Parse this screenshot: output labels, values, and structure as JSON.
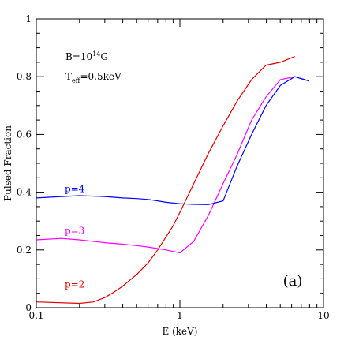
{
  "chart_data": {
    "type": "line",
    "xlabel": "E (keV)",
    "ylabel": "Pulsed Fraction",
    "xscale": "log",
    "xlim": [
      0.1,
      10
    ],
    "ylim": [
      0,
      1
    ],
    "x_ticks": [
      {
        "value": 0.1,
        "label": "0.1"
      },
      {
        "value": 1,
        "label": "1"
      },
      {
        "value": 10,
        "label": "10"
      }
    ],
    "y_ticks": [
      {
        "value": 0,
        "label": "0"
      },
      {
        "value": 0.2,
        "label": "0.2"
      },
      {
        "value": 0.4,
        "label": "0.4"
      },
      {
        "value": 0.6,
        "label": "0.6"
      },
      {
        "value": 0.8,
        "label": "0.8"
      },
      {
        "value": 1,
        "label": "1"
      }
    ],
    "annotations": {
      "field_prefix": "B=10",
      "field_exp": "14",
      "field_unit": "G",
      "temp_prefix": "T",
      "temp_sub": "eff",
      "temp_value": "=0.5keV",
      "panel_label": "(a)"
    },
    "grid": false,
    "series": [
      {
        "name": "p=2",
        "color": "#e00000",
        "label_at": {
          "x": 0.185,
          "y": 0.07
        },
        "x": [
          0.1,
          0.2,
          0.25,
          0.3,
          0.35,
          0.4,
          0.5,
          0.6,
          0.7,
          0.8,
          0.9,
          1.0,
          1.25,
          1.58,
          2.0,
          2.5,
          3.16,
          3.98,
          5.01,
          6.31
        ],
        "y": [
          0.02,
          0.015,
          0.02,
          0.035,
          0.055,
          0.075,
          0.115,
          0.155,
          0.2,
          0.245,
          0.285,
          0.33,
          0.43,
          0.535,
          0.63,
          0.715,
          0.79,
          0.84,
          0.85,
          0.87
        ]
      },
      {
        "name": "p=3",
        "color": "#ff00ff",
        "label_at": {
          "x": 0.185,
          "y": 0.255
        },
        "x": [
          0.1,
          0.15,
          0.2,
          0.3,
          0.4,
          0.5,
          0.6,
          0.7,
          0.8,
          1.0,
          1.25,
          1.58,
          2.0,
          2.5,
          3.16,
          3.98,
          5.01,
          6.31,
          7.94
        ],
        "y": [
          0.235,
          0.24,
          0.235,
          0.225,
          0.22,
          0.215,
          0.21,
          0.205,
          0.2,
          0.19,
          0.23,
          0.32,
          0.43,
          0.53,
          0.65,
          0.73,
          0.79,
          0.8,
          0.785
        ]
      },
      {
        "name": "p=4",
        "color": "#0000ff",
        "label_at": {
          "x": 0.185,
          "y": 0.4
        },
        "x": [
          0.1,
          0.15,
          0.2,
          0.3,
          0.4,
          0.5,
          0.6,
          0.7,
          0.8,
          1.0,
          1.25,
          1.58,
          2.0,
          2.5,
          3.16,
          3.98,
          5.01,
          6.31,
          7.94
        ],
        "y": [
          0.38,
          0.385,
          0.388,
          0.385,
          0.38,
          0.378,
          0.375,
          0.37,
          0.365,
          0.36,
          0.358,
          0.357,
          0.37,
          0.49,
          0.6,
          0.7,
          0.77,
          0.8,
          0.785
        ]
      }
    ]
  }
}
